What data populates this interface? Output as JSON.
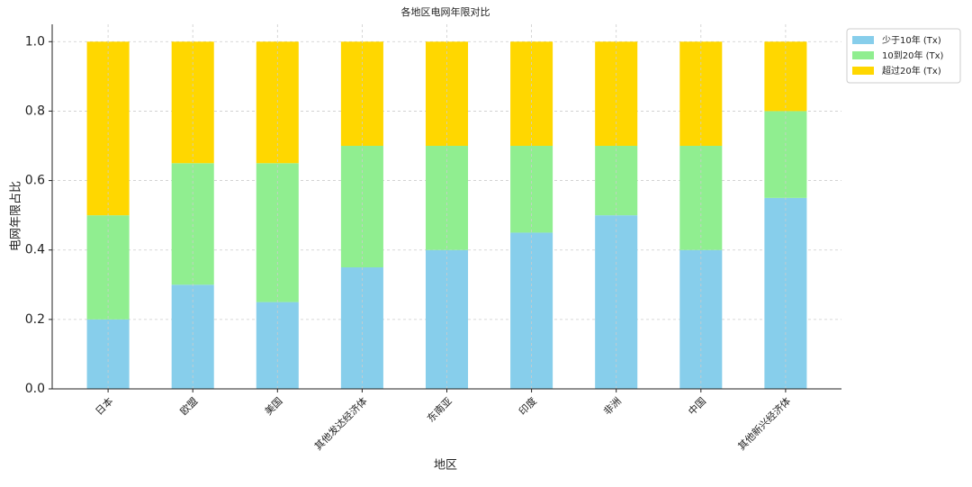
{
  "chart_data": {
    "type": "stacked-bar",
    "title": "各地区电网年限对比",
    "x_label": "地区",
    "y_label": "电网年限占比",
    "categories": [
      "日本",
      "欧盟",
      "美国",
      "其他发达经济体",
      "东南亚",
      "印度",
      "非洲",
      "中国",
      "其他新兴经济体"
    ],
    "series": [
      {
        "name": "少于10年 (Tx)",
        "color": "#87ceeb",
        "values": [
          0.2,
          0.3,
          0.25,
          0.35,
          0.4,
          0.45,
          0.5,
          0.4,
          0.55
        ]
      },
      {
        "name": "10到20年 (Tx)",
        "color": "#90ee90",
        "values": [
          0.3,
          0.35,
          0.4,
          0.35,
          0.3,
          0.25,
          0.2,
          0.3,
          0.25
        ]
      },
      {
        "name": "超过20年 (Tx)",
        "color": "#ffd700",
        "values": [
          0.5,
          0.35,
          0.35,
          0.3,
          0.3,
          0.3,
          0.3,
          0.3,
          0.2
        ]
      }
    ],
    "ylim": [
      0,
      1.05
    ],
    "yticks": [
      {
        "value": 0,
        "label": "0.0"
      },
      0.2,
      0.4,
      0.6,
      0.8,
      {
        "value": 1,
        "label": "1.0"
      }
    ],
    "grid": true,
    "legend": "upper right outside"
  }
}
